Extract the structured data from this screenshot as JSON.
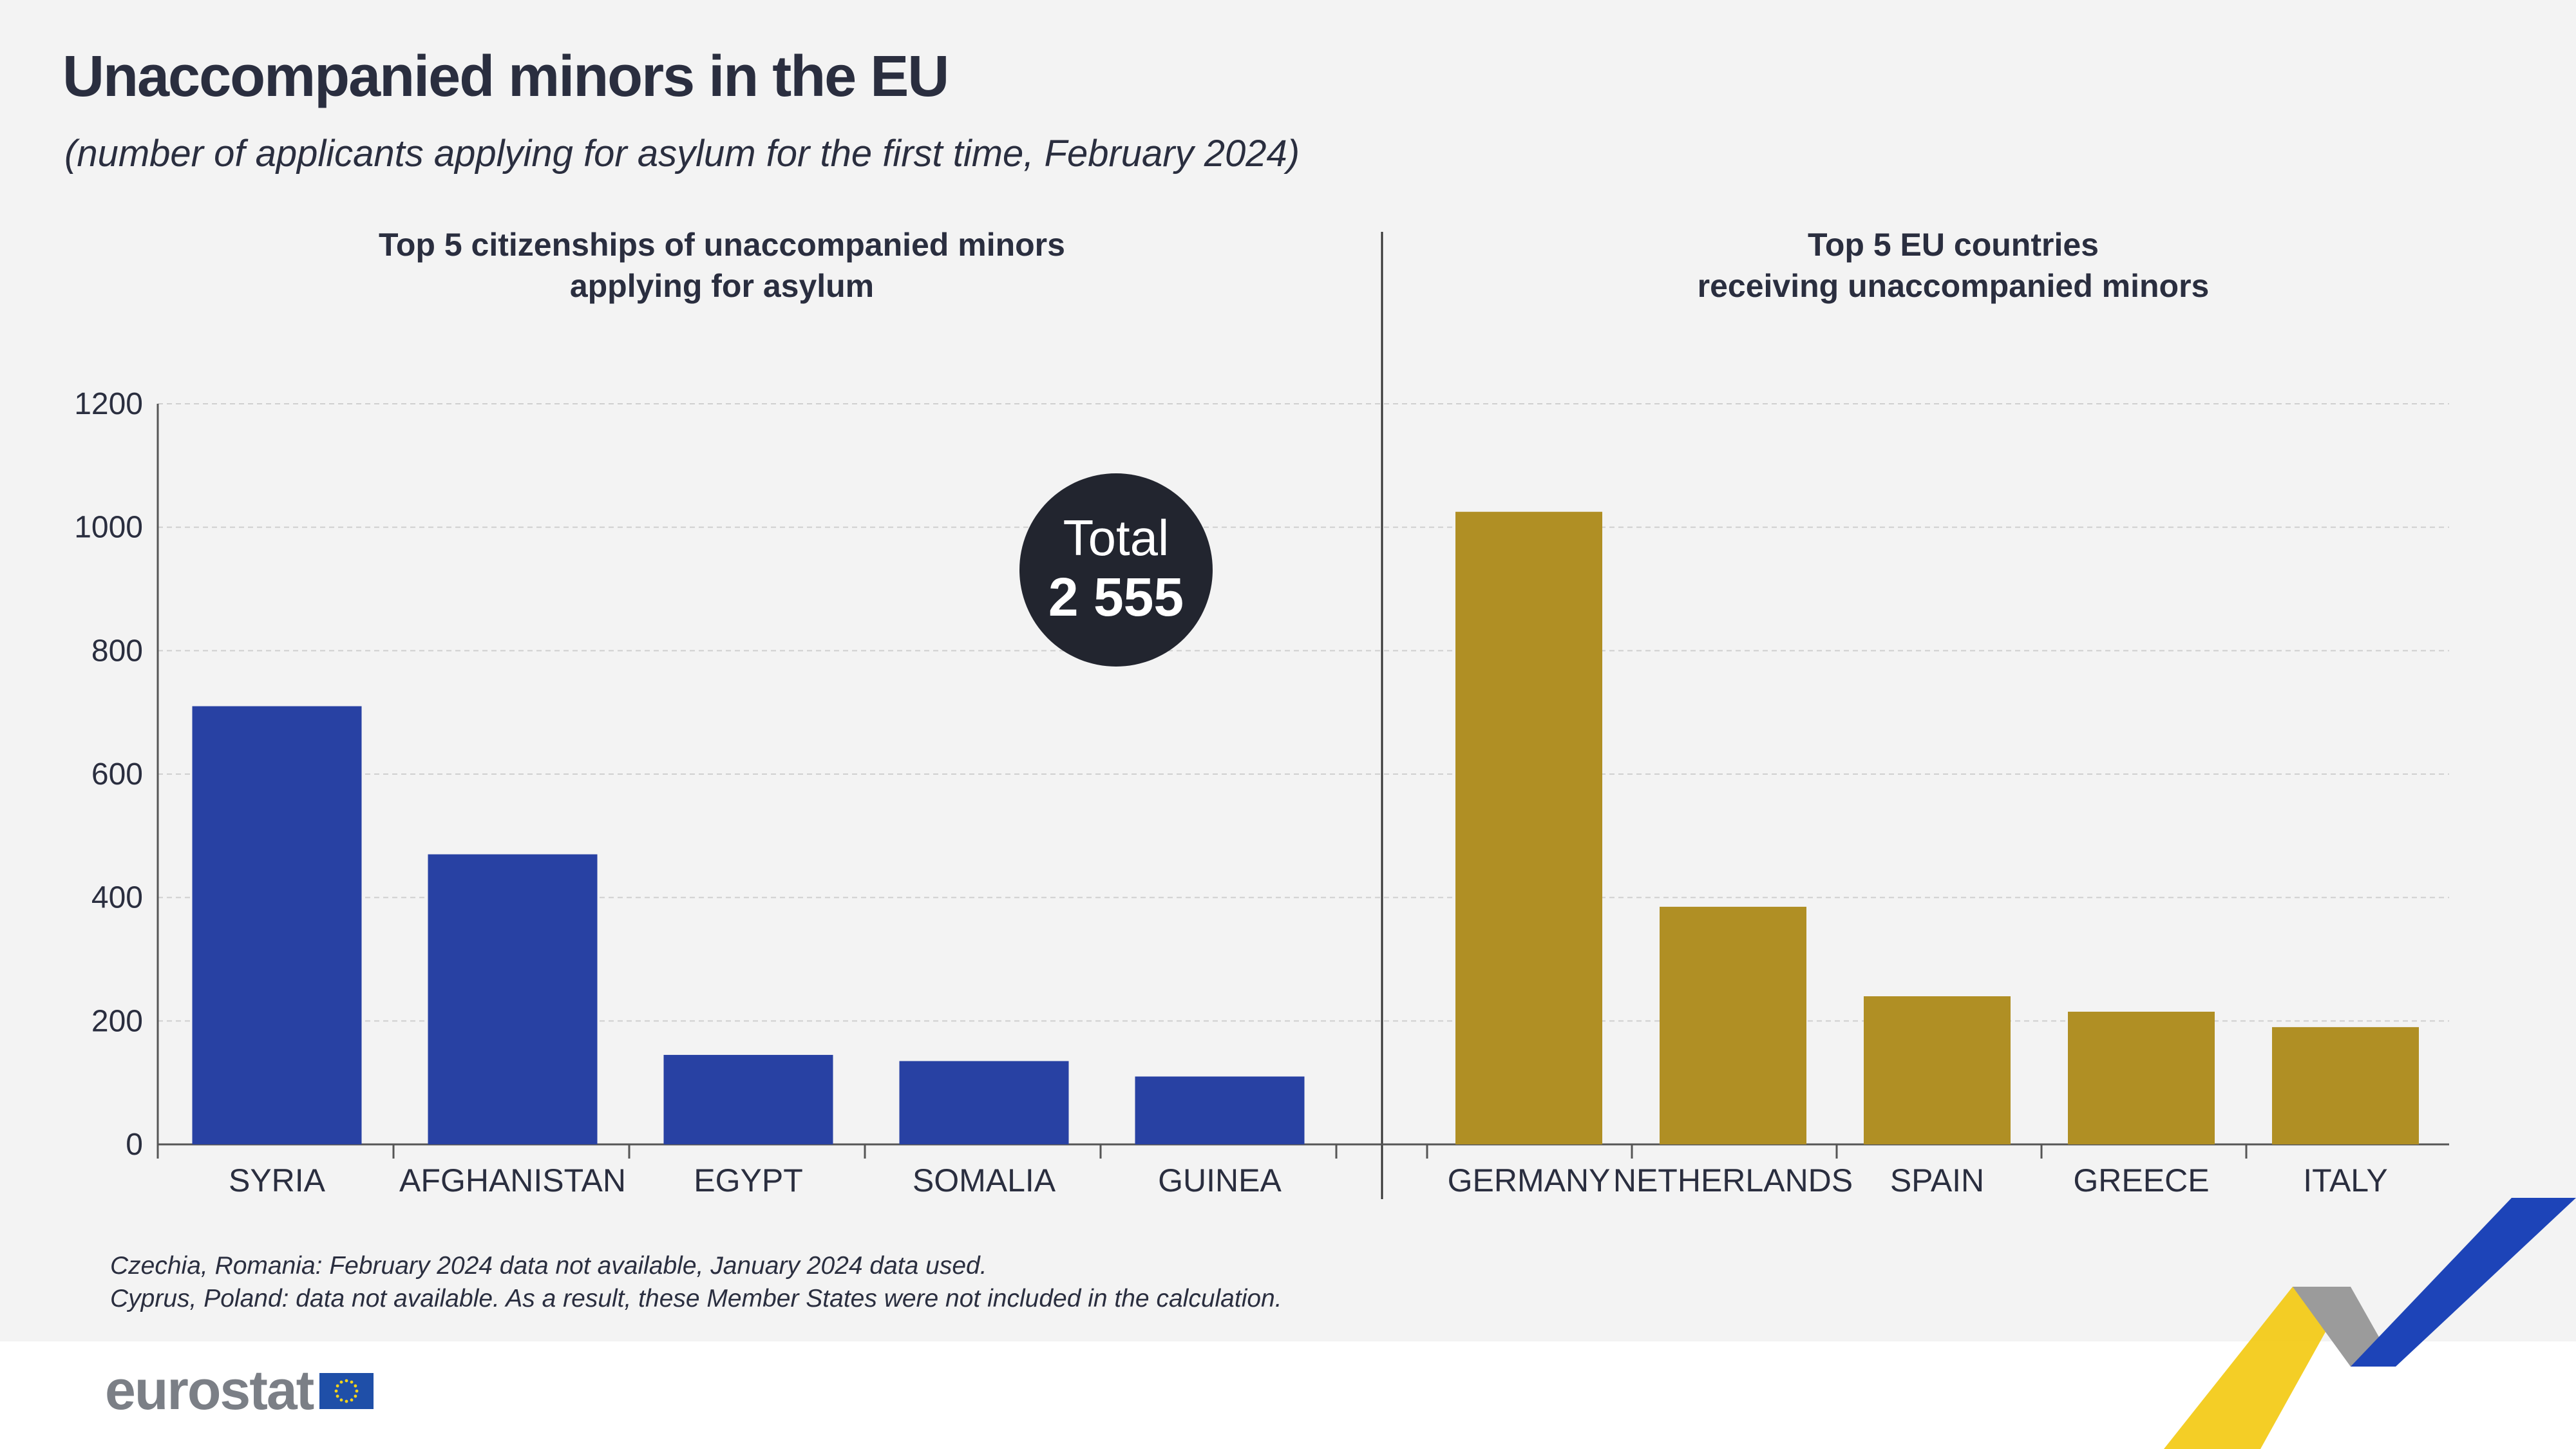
{
  "header": {
    "title": "Unaccompanied minors in the EU",
    "subtitle": "(number of applicants applying for asylum for the first time, February 2024)"
  },
  "chart_data": [
    {
      "type": "bar",
      "title_lines": [
        "Top 5 citizenships of unaccompanied minors",
        "applying for asylum"
      ],
      "categories": [
        "SYRIA",
        "AFGHANISTAN",
        "EGYPT",
        "SOMALIA",
        "GUINEA"
      ],
      "values": [
        710,
        470,
        145,
        135,
        110
      ],
      "color": "#2841a3",
      "ylim": [
        0,
        1200
      ],
      "yticks": [
        "0",
        "200",
        "400",
        "600",
        "800",
        "1000",
        "1200"
      ],
      "grid": true,
      "annotation": {
        "label": "Total",
        "value": "2 555"
      }
    },
    {
      "type": "bar",
      "title_lines": [
        "Top 5 EU countries",
        "receiving unaccompanied minors"
      ],
      "categories": [
        "GERMANY",
        "NETHERLANDS",
        "SPAIN",
        "GREECE",
        "ITALY"
      ],
      "values": [
        1025,
        385,
        240,
        215,
        190
      ],
      "color": "#b08f24",
      "ylim": [
        0,
        1200
      ],
      "grid": true
    }
  ],
  "footnotes": {
    "line1": "Czechia, Romania: February 2024 data not available, January 2024 data used.",
    "line2": "Cyprus, Poland: data not available.  As a result, these Member States were not included in the calculation."
  },
  "logo": {
    "text": "eurostat"
  },
  "colors": {
    "annotation_circle": "#22252f",
    "axis": "#555555",
    "grid": "#cfcfcf"
  }
}
